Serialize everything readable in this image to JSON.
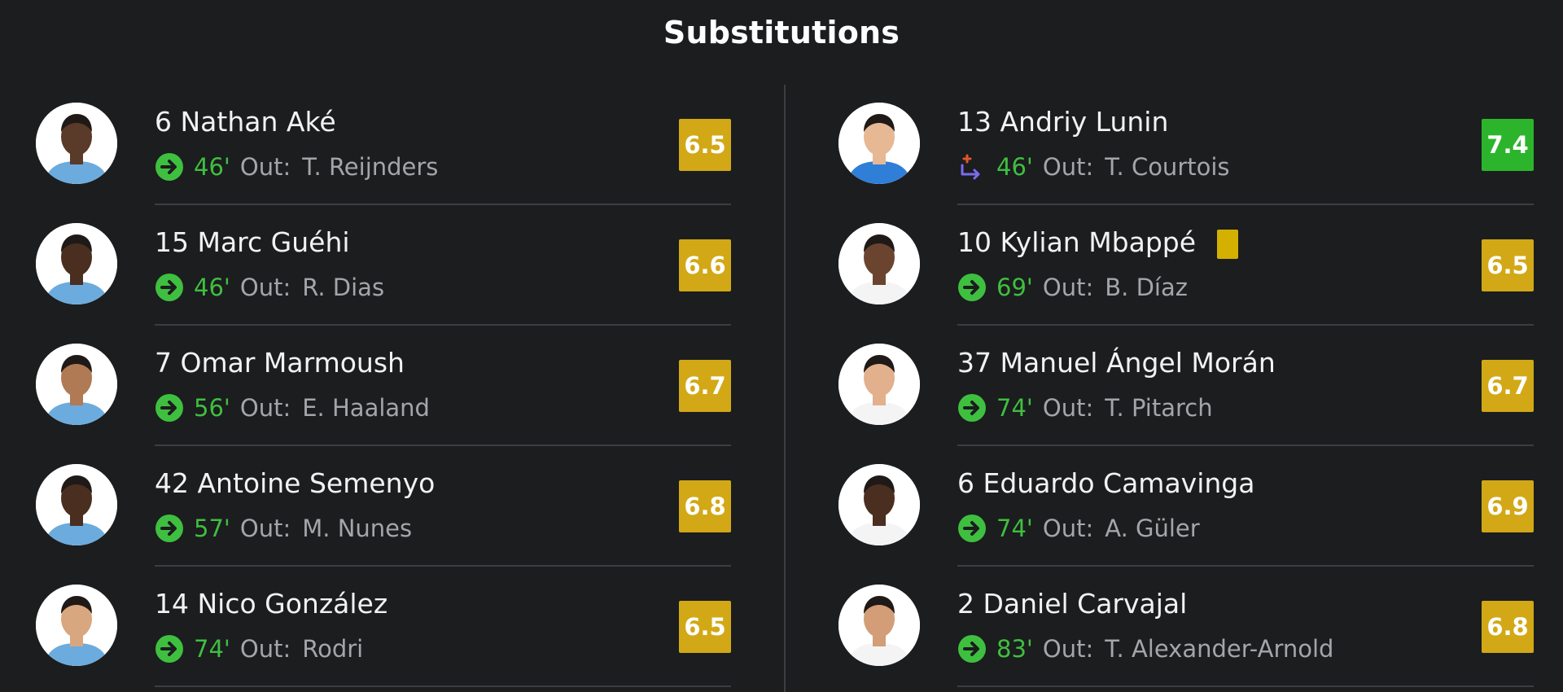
{
  "header": {
    "title": "Substitutions"
  },
  "colors": {
    "background": "#1b1d1f",
    "divider": "#3b3e41",
    "minute_green": "#3fbf3f",
    "rating_yellow": "#d2a816",
    "rating_green": "#2cb52c",
    "yellow_card": "#d4b000",
    "muted_text": "#a3a6a8"
  },
  "home_subs": [
    {
      "player": "6 Nathan Aké",
      "minute": "46'",
      "out_label": "Out:",
      "out_player": "T. Reijnders",
      "rating": "6.5",
      "rating_color": "yellow",
      "icon": "sub-arrow-icon",
      "kit": "#6cabdd",
      "skin": "#5a3a28"
    },
    {
      "player": "15 Marc Guéhi",
      "minute": "46'",
      "out_label": "Out:",
      "out_player": "R. Dias",
      "rating": "6.6",
      "rating_color": "yellow",
      "icon": "sub-arrow-icon",
      "kit": "#6cabdd",
      "skin": "#4a2e20"
    },
    {
      "player": "7 Omar Marmoush",
      "minute": "56'",
      "out_label": "Out:",
      "out_player": "E. Haaland",
      "rating": "6.7",
      "rating_color": "yellow",
      "icon": "sub-arrow-icon",
      "kit": "#6cabdd",
      "skin": "#b07a55"
    },
    {
      "player": "42 Antoine Semenyo",
      "minute": "57'",
      "out_label": "Out:",
      "out_player": "M. Nunes",
      "rating": "6.8",
      "rating_color": "yellow",
      "icon": "sub-arrow-icon",
      "kit": "#6cabdd",
      "skin": "#4a2e20"
    },
    {
      "player": "14 Nico González",
      "minute": "74'",
      "out_label": "Out:",
      "out_player": "Rodri",
      "rating": "6.5",
      "rating_color": "yellow",
      "icon": "sub-arrow-icon",
      "kit": "#6cabdd",
      "skin": "#d9a77f"
    }
  ],
  "away_subs": [
    {
      "player": "13 Andriy Lunin",
      "minute": "46'",
      "out_label": "Out:",
      "out_player": "T. Courtois",
      "rating": "7.4",
      "rating_color": "green",
      "icon": "goalkeeper-sub-icon",
      "kit": "#2f7ed8",
      "skin": "#e6b894"
    },
    {
      "player": "10 Kylian Mbappé",
      "minute": "69'",
      "out_label": "Out:",
      "out_player": "B. Díaz",
      "rating": "6.5",
      "rating_color": "yellow",
      "icon": "sub-arrow-icon",
      "kit": "#f4f4f4",
      "skin": "#6b4430",
      "yellow_card": true
    },
    {
      "player": "37 Manuel Ángel Morán",
      "minute": "74'",
      "out_label": "Out:",
      "out_player": "T. Pitarch",
      "rating": "6.7",
      "rating_color": "yellow",
      "icon": "sub-arrow-icon",
      "kit": "#f4f4f4",
      "skin": "#e2b08c"
    },
    {
      "player": "6 Eduardo Camavinga",
      "minute": "74'",
      "out_label": "Out:",
      "out_player": "A. Güler",
      "rating": "6.9",
      "rating_color": "yellow",
      "icon": "sub-arrow-icon",
      "kit": "#f4f4f4",
      "skin": "#4a2e20"
    },
    {
      "player": "2 Daniel Carvajal",
      "minute": "83'",
      "out_label": "Out:",
      "out_player": "T. Alexander-Arnold",
      "rating": "6.8",
      "rating_color": "yellow",
      "icon": "sub-arrow-icon",
      "kit": "#f4f4f4",
      "skin": "#d29d77"
    }
  ]
}
